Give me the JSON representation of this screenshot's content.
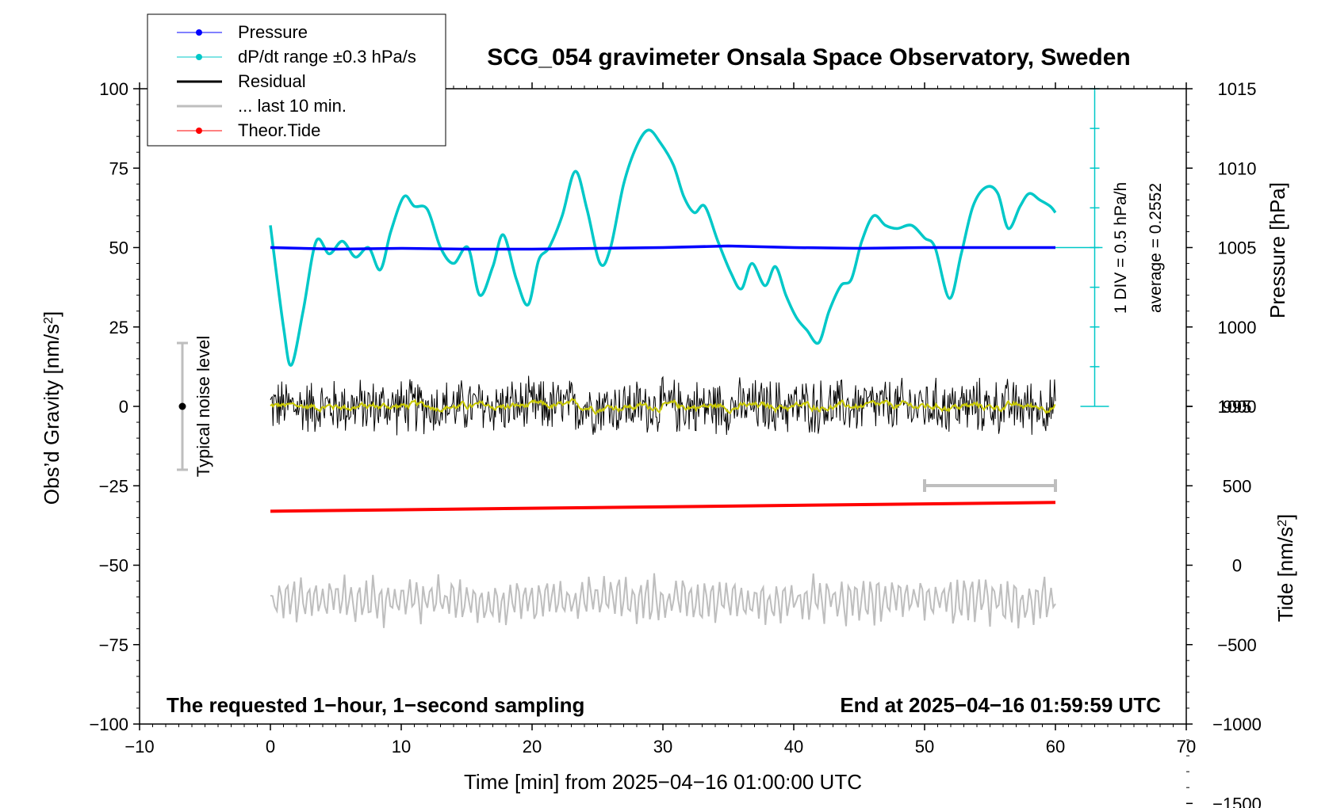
{
  "chart_data": {
    "type": "line",
    "title": "SCG_054 gravimeter Onsala Space Observatory, Sweden",
    "xlabel": "Time [min] from 2025−04−16 01:00:00 UTC",
    "xlim": [
      -10,
      70
    ],
    "x_ticks": [
      "−10",
      "0",
      "10",
      "20",
      "30",
      "40",
      "50",
      "60",
      "70"
    ],
    "x_tick_values": [
      -10,
      0,
      10,
      20,
      30,
      40,
      50,
      60,
      70
    ],
    "left_axis": {
      "label_main": "Obs’d Gravity [nm/s",
      "label_sup": "2",
      "label_end": "]",
      "ylim": [
        -100,
        100
      ],
      "ticks": [
        "100",
        "75",
        "50",
        "25",
        "0",
        "−25",
        "−50",
        "−75",
        "−100"
      ],
      "tick_values": [
        100,
        75,
        50,
        25,
        0,
        -25,
        -50,
        -75,
        -100
      ]
    },
    "pressure_axis": {
      "label": "Pressure [hPa]",
      "ticks": [
        "1015",
        "1010",
        "1005",
        "1000",
        "995"
      ],
      "tick_values": [
        1015,
        1010,
        1005,
        1000,
        995
      ]
    },
    "tide_axis": {
      "label_main": "Tide [nm/s",
      "label_sup": "2",
      "label_end": "]",
      "ticks": [
        "1000",
        "500",
        "0",
        "−500",
        "−1000",
        "−1500"
      ],
      "tick_values": [
        1000,
        500,
        0,
        -500,
        -1000,
        -1500
      ]
    },
    "legend": {
      "placement": "top-left",
      "entries": [
        {
          "label": "Pressure",
          "color": "#0000ff",
          "marker": true
        },
        {
          "label": "dP/dt range ±0.3 hPa/s",
          "color": "#00c8c8",
          "marker": true
        },
        {
          "label": "Residual",
          "color": "#000000",
          "marker": false
        },
        {
          "label": "... last 10 min.",
          "color": "#bebebe",
          "marker": false
        },
        {
          "label": "Theor.Tide",
          "color": "#ff0000",
          "marker": true
        }
      ]
    },
    "annotations": {
      "noise_label": "Typical noise level",
      "div_label": "1 DIV = 0.5 hPa/h",
      "average_label": "average = 0.2552",
      "bottom_left": "The requested 1−hour, 1−second sampling",
      "bottom_right": "End at 2025−04−16 01:59:59 UTC"
    },
    "series": [
      {
        "name": "Pressure",
        "color": "#0000ff",
        "axis": "pressure",
        "x": [
          0,
          5,
          10,
          15,
          20,
          25,
          30,
          35,
          40,
          45,
          50,
          55,
          60
        ],
        "y": [
          1005.0,
          1004.9,
          1004.95,
          1004.9,
          1004.9,
          1004.95,
          1005.0,
          1005.1,
          1005.0,
          1004.95,
          1005.0,
          1005.0,
          1005.0
        ]
      },
      {
        "name": "dP/dt range ±0.3 hPa/s",
        "color": "#00c8c8",
        "axis": "left",
        "x": [
          0,
          1.0,
          1.6,
          2.5,
          3.5,
          4.5,
          5.5,
          6.5,
          7.5,
          8.4,
          9.2,
          10.2,
          11.0,
          12.0,
          13.0,
          14.0,
          15.1,
          16.0,
          17.0,
          17.8,
          18.8,
          19.7,
          20.5,
          21.3,
          22.3,
          23.3,
          24.2,
          25.2,
          26.0,
          27.0,
          28.0,
          28.9,
          29.8,
          30.8,
          31.6,
          32.4,
          33.2,
          34.2,
          35.2,
          36.0,
          36.8,
          37.8,
          38.6,
          39.4,
          40.2,
          41.0,
          41.9,
          42.7,
          43.6,
          44.4,
          45.2,
          46.1,
          47.0,
          47.9,
          49.0,
          50.0,
          50.8,
          51.9,
          52.8,
          53.7,
          54.7,
          55.6,
          56.4,
          57.3,
          58.0,
          58.8,
          59.6,
          60
        ],
        "y": [
          57,
          25,
          13,
          30,
          52,
          48,
          52,
          47,
          50,
          43,
          55,
          66,
          63,
          62,
          50,
          45,
          50,
          35,
          44,
          54,
          40,
          32,
          46,
          50,
          60,
          74,
          62,
          45,
          50,
          70,
          82,
          87,
          83,
          76,
          66,
          61,
          63,
          52,
          42,
          37,
          45,
          38,
          44,
          35,
          28,
          24,
          20,
          30,
          38,
          40,
          52,
          60,
          57,
          56,
          57,
          53,
          50,
          34,
          48,
          63,
          69,
          67,
          56,
          63,
          67,
          65,
          63,
          61
        ]
      },
      {
        "name": "Residual",
        "color": "#000000",
        "axis": "left",
        "description_range": [
          -12,
          12
        ],
        "x": [
          0,
          60
        ],
        "y": [
          0,
          0
        ]
      },
      {
        "name": "... last 10 min.",
        "color": "#bebebe",
        "axis": "left",
        "x": [
          0,
          60
        ],
        "y": [
          -61,
          -61
        ]
      },
      {
        "name": "Theor.Tide",
        "color": "#ff0000",
        "axis": "tide",
        "x": [
          0,
          60
        ],
        "y": [
          340,
          395
        ]
      }
    ]
  }
}
